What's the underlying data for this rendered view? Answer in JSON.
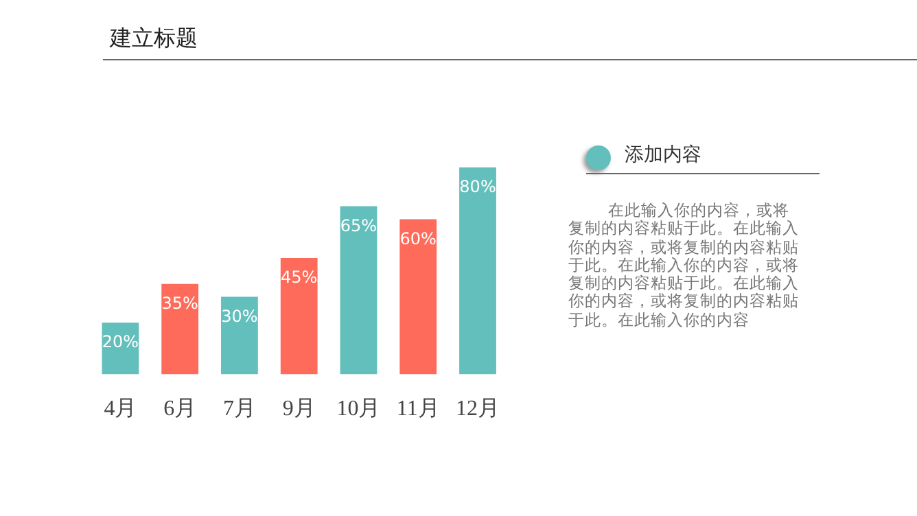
{
  "chart_data": {
    "type": "bar",
    "title": "建立标题",
    "categories": [
      "4月",
      "6月",
      "7月",
      "9月",
      "10月",
      "11月",
      "12月"
    ],
    "values": [
      20,
      35,
      30,
      45,
      65,
      60,
      80
    ],
    "colors": [
      "#63bfbc",
      "#ff6b5b",
      "#63bfbc",
      "#ff6b5b",
      "#63bfbc",
      "#ff6b5b",
      "#63bfbc"
    ],
    "value_labels": [
      "20%",
      "35%",
      "30%",
      "45%",
      "65%",
      "60%",
      "80%"
    ],
    "annotations": [
      "添加内容",
      "在此输入你的内容，或将复制的内容粘贴于此。在此输入你的内容，或将复制的内容粘贴于此。在此输入你的内容，或将复制的内容粘贴于此。在此输入你的内容，或将复制的内容粘贴于此。在此输入你的内容"
    ],
    "grid": false,
    "legend": false
  }
}
